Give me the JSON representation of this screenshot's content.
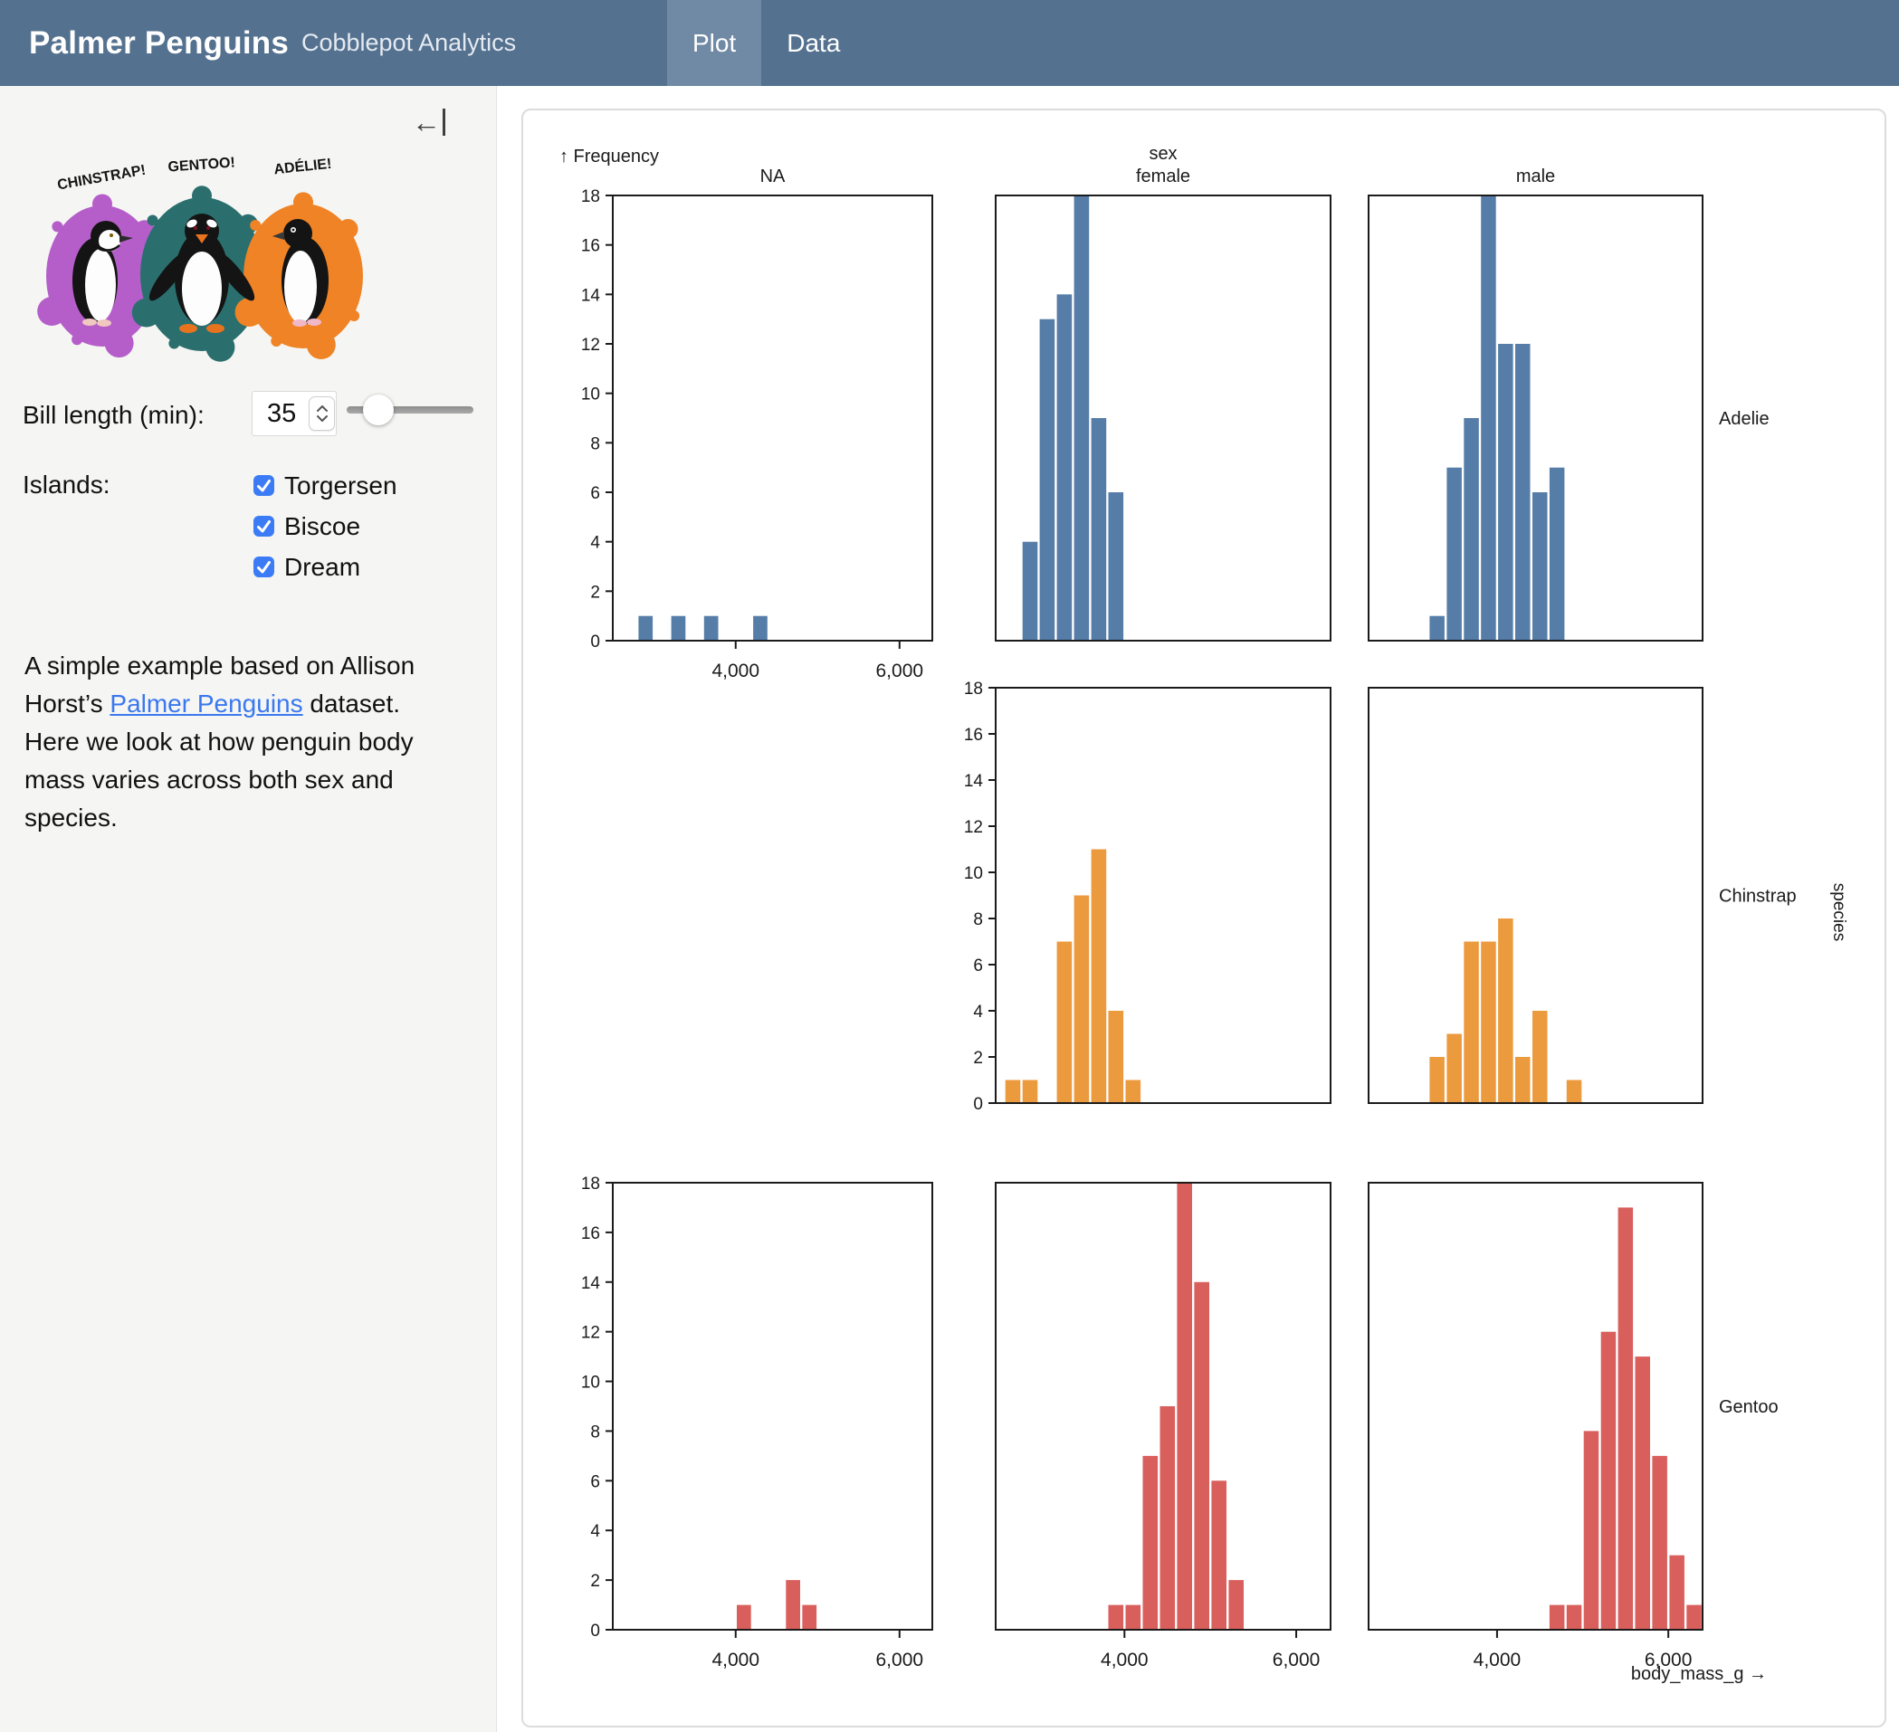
{
  "colors": {
    "header-bg": "#54718f",
    "header-tab-active": "#7089a4",
    "sidebar-bg": "#f5f5f3",
    "checkbox-blue": "#3b7cf6",
    "link-blue": "#3a78ee"
  },
  "header": {
    "title": "Palmer Penguins",
    "subtitle": "Cobblepot Analytics",
    "tabs": [
      {
        "label": "Plot",
        "active": true
      },
      {
        "label": "Data",
        "active": false
      }
    ]
  },
  "sidebar": {
    "collapse_icon": "←",
    "artwork": {
      "labels": [
        "CHINSTRAP!",
        "GENTOO!",
        "ADÉLIE!"
      ],
      "splash_colors": [
        "#b55ec9",
        "#2a6f6e",
        "#ef8325"
      ]
    },
    "bill_length_label": "Bill length (min):",
    "bill_length_value": "35",
    "islands_label": "Islands:",
    "islands": [
      {
        "label": "Torgersen",
        "checked": true
      },
      {
        "label": "Biscoe",
        "checked": true
      },
      {
        "label": "Dream",
        "checked": true
      }
    ],
    "description_before": "A simple example based on Allison Horst’s ",
    "description_link": "Palmer Penguins",
    "description_after": " dataset. Here we look at how penguin body mass varies across both sex and species."
  },
  "chart_data": {
    "type": "bar",
    "subtype": "faceted-histogram",
    "frequency_label": "↑ Frequency",
    "xlabel": "body_mass_g →",
    "fx_label": "sex",
    "fy_label": "species",
    "columns": [
      "NA",
      "female",
      "male"
    ],
    "rows": [
      "Adelie",
      "Chinstrap",
      "Gentoo"
    ],
    "x_domain": [
      2500,
      6400
    ],
    "y_domain": [
      0,
      18
    ],
    "x_ticks": [
      4000,
      6000
    ],
    "x_tick_labels": [
      "4,000",
      "6,000"
    ],
    "y_ticks": [
      0,
      2,
      4,
      6,
      8,
      10,
      12,
      14,
      16,
      18
    ],
    "bin_width": 200,
    "grid": false,
    "colors": {
      "Adelie": "#567da8",
      "Chinstrap": "#ec9a3e",
      "Gentoo": "#d85f5c"
    },
    "facets": [
      {
        "row": "Adelie",
        "col": "NA",
        "bins": [
          [
            2800,
            1
          ],
          [
            3200,
            1
          ],
          [
            3600,
            1
          ],
          [
            4200,
            1
          ]
        ]
      },
      {
        "row": "Adelie",
        "col": "female",
        "bins": [
          [
            2800,
            4
          ],
          [
            3000,
            13
          ],
          [
            3200,
            14
          ],
          [
            3400,
            18
          ],
          [
            3600,
            9
          ],
          [
            3800,
            6
          ]
        ]
      },
      {
        "row": "Adelie",
        "col": "male",
        "bins": [
          [
            3200,
            1
          ],
          [
            3400,
            7
          ],
          [
            3600,
            9
          ],
          [
            3800,
            18
          ],
          [
            4000,
            12
          ],
          [
            4200,
            12
          ],
          [
            4400,
            6
          ],
          [
            4600,
            7
          ]
        ]
      },
      {
        "row": "Chinstrap",
        "col": "female",
        "bins": [
          [
            2600,
            1
          ],
          [
            2800,
            1
          ],
          [
            3200,
            7
          ],
          [
            3400,
            9
          ],
          [
            3600,
            11
          ],
          [
            3800,
            4
          ],
          [
            4000,
            1
          ]
        ]
      },
      {
        "row": "Chinstrap",
        "col": "male",
        "bins": [
          [
            3200,
            2
          ],
          [
            3400,
            3
          ],
          [
            3600,
            7
          ],
          [
            3800,
            7
          ],
          [
            4000,
            8
          ],
          [
            4200,
            2
          ],
          [
            4400,
            4
          ],
          [
            4800,
            1
          ]
        ]
      },
      {
        "row": "Gentoo",
        "col": "NA",
        "bins": [
          [
            4000,
            1
          ],
          [
            4600,
            2
          ],
          [
            4800,
            1
          ]
        ]
      },
      {
        "row": "Gentoo",
        "col": "female",
        "bins": [
          [
            3800,
            1
          ],
          [
            4000,
            1
          ],
          [
            4200,
            7
          ],
          [
            4400,
            9
          ],
          [
            4600,
            18
          ],
          [
            4800,
            14
          ],
          [
            5000,
            6
          ],
          [
            5200,
            2
          ]
        ]
      },
      {
        "row": "Gentoo",
        "col": "male",
        "bins": [
          [
            4600,
            1
          ],
          [
            4800,
            1
          ],
          [
            5000,
            8
          ],
          [
            5200,
            12
          ],
          [
            5400,
            17
          ],
          [
            5600,
            11
          ],
          [
            5800,
            7
          ],
          [
            6000,
            3
          ],
          [
            6200,
            1
          ]
        ]
      }
    ],
    "empty_facets": [
      {
        "row": "Chinstrap",
        "col": "NA"
      }
    ]
  }
}
